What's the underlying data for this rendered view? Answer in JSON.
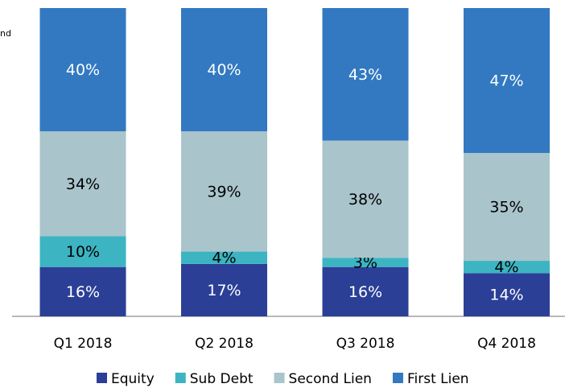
{
  "chart_data": {
    "type": "stacked_bar",
    "annotation": "nd",
    "categories": [
      "Q1 2018",
      "Q2 2018",
      "Q3 2018",
      "Q4 2018"
    ],
    "series": [
      {
        "name": "Equity",
        "color": "#2b3f96",
        "label_color": "#ffffff",
        "values": [
          16,
          17,
          16,
          14
        ],
        "value_labels": [
          "16%",
          "17%",
          "16%",
          "14%"
        ]
      },
      {
        "name": "Sub Debt",
        "color": "#3cb4c2",
        "label_color": "#000000",
        "values": [
          10,
          4,
          3,
          4
        ],
        "value_labels": [
          "10%",
          "4%",
          "3%",
          "4%"
        ]
      },
      {
        "name": "Second Lien",
        "color": "#a9c4cb",
        "label_color": "#000000",
        "values": [
          34,
          39,
          38,
          35
        ],
        "value_labels": [
          "34%",
          "39%",
          "38%",
          "35%"
        ]
      },
      {
        "name": "First Lien",
        "color": "#3279c1",
        "label_color": "#ffffff",
        "values": [
          40,
          40,
          43,
          47
        ],
        "value_labels": [
          "40%",
          "40%",
          "43%",
          "47%"
        ]
      }
    ],
    "ylim": [
      0,
      100
    ]
  }
}
